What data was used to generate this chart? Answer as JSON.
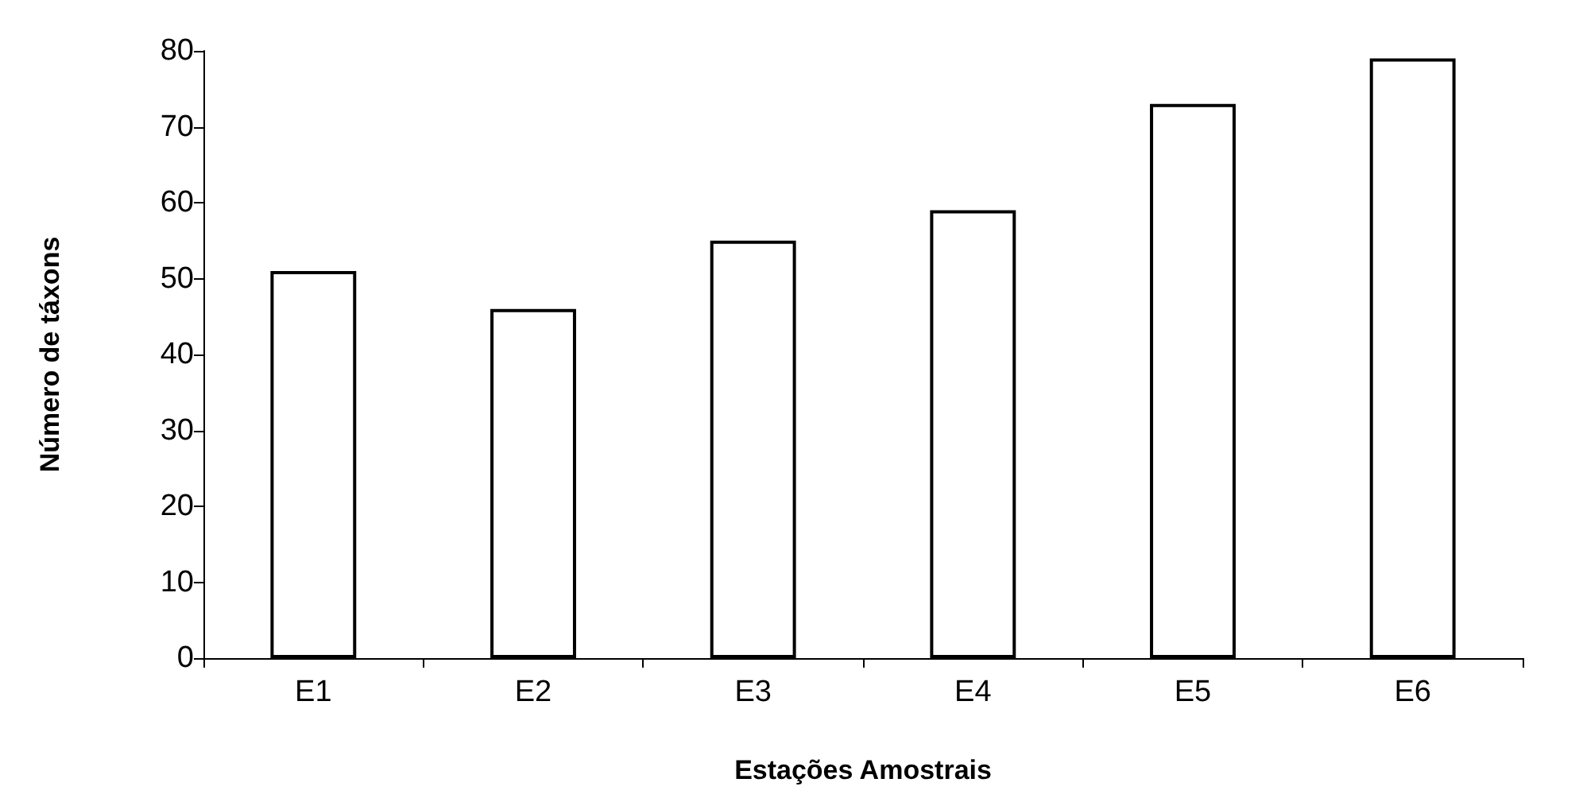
{
  "chart_data": {
    "type": "bar",
    "xlabel": "Estações Amostrais",
    "ylabel": "Número de táxons",
    "categories": [
      "E1",
      "E2",
      "E3",
      "E4",
      "E5",
      "E6"
    ],
    "values": [
      51,
      46,
      55,
      59,
      73,
      79
    ],
    "color": "#ffffff",
    "ylim": [
      0,
      80
    ],
    "yticks": [
      0,
      10,
      20,
      30,
      40,
      50,
      60,
      70,
      80
    ],
    "grid": false
  }
}
